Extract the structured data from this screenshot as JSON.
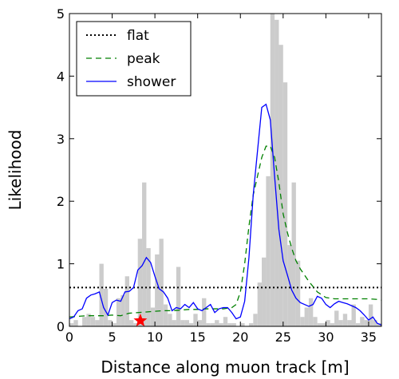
{
  "chart_data": {
    "type": "line",
    "xlabel": "Distance along muon track  [m]",
    "ylabel": "Likelihood",
    "xlim": [
      0,
      36.5
    ],
    "ylim": [
      0,
      5
    ],
    "xticks": [
      "0",
      "5",
      "10",
      "15",
      "20",
      "25",
      "30",
      "35"
    ],
    "yticks": [
      "0",
      "1",
      "2",
      "3",
      "4",
      "5"
    ],
    "legend_position": "top-left",
    "histogram": {
      "color": "#cccccc",
      "bin_width": 0.5,
      "heights": [
        0.05,
        0.1,
        0.0,
        0.15,
        0.2,
        0.15,
        0.1,
        1.0,
        0.6,
        0.1,
        0.05,
        0.45,
        0.5,
        0.8,
        0.1,
        0.05,
        1.4,
        2.3,
        1.25,
        0.3,
        1.15,
        1.4,
        0.35,
        0.2,
        0.1,
        0.95,
        0.1,
        0.1,
        0.05,
        0.2,
        0.1,
        0.45,
        0.05,
        0.05,
        0.1,
        0.05,
        0.15,
        0.05,
        0.05,
        0.0,
        0.05,
        0.0,
        0.05,
        0.2,
        0.7,
        1.1,
        2.4,
        5.0,
        4.9,
        4.5,
        3.9,
        1.3,
        2.3,
        1.05,
        0.15,
        0.3,
        0.45,
        0.15,
        0.05,
        0.05,
        0.1,
        0.05,
        0.25,
        0.1,
        0.2,
        0.1,
        0.35,
        0.05,
        0.15,
        0.1,
        0.35,
        0.1,
        0.05,
        0.2,
        0.1,
        0.05,
        0.1,
        0.0,
        0.0,
        0.05,
        0.05,
        0.0,
        0.05,
        0.0,
        0.0
      ]
    },
    "series": [
      {
        "name": "flat",
        "style": "dotted",
        "color": "#000000",
        "x": [
          0,
          36.5
        ],
        "y": [
          0.62,
          0.62
        ]
      },
      {
        "name": "peak",
        "style": "dashed",
        "color": "#008000",
        "x": [
          0,
          1,
          2,
          3,
          4,
          5,
          6,
          7,
          8,
          9,
          10,
          11,
          12,
          13,
          14,
          15,
          16,
          17,
          18,
          19,
          19.5,
          20,
          20.5,
          21,
          21.5,
          22,
          22.5,
          23,
          23.5,
          24,
          24.5,
          25,
          25.5,
          26,
          26.5,
          27,
          27.5,
          28,
          29,
          30,
          31,
          32,
          33,
          34,
          35,
          36,
          36.5
        ],
        "y": [
          0.15,
          0.16,
          0.17,
          0.17,
          0.17,
          0.18,
          0.17,
          0.21,
          0.22,
          0.23,
          0.24,
          0.25,
          0.25,
          0.26,
          0.27,
          0.27,
          0.28,
          0.28,
          0.28,
          0.3,
          0.35,
          0.55,
          1.0,
          1.6,
          2.1,
          2.4,
          2.7,
          2.88,
          2.88,
          2.7,
          2.3,
          1.8,
          1.5,
          1.25,
          1.05,
          0.92,
          0.82,
          0.72,
          0.55,
          0.46,
          0.44,
          0.44,
          0.44,
          0.44,
          0.44,
          0.43,
          0.42
        ]
      },
      {
        "name": "shower",
        "style": "solid",
        "color": "#0000ff",
        "x": [
          0,
          0.5,
          1,
          1.5,
          2,
          2.5,
          3,
          3.5,
          4,
          4.5,
          5,
          5.5,
          6,
          6.5,
          7,
          7.5,
          8,
          8.5,
          9,
          9.5,
          10,
          10.5,
          11,
          11.5,
          12,
          12.5,
          13,
          13.5,
          14,
          14.5,
          15,
          15.5,
          16,
          16.5,
          17,
          17.5,
          18,
          18.5,
          19,
          19.5,
          20,
          20.5,
          21,
          21.5,
          22,
          22.5,
          23,
          23.5,
          24,
          24.5,
          25,
          25.5,
          26,
          26.5,
          27,
          27.5,
          28,
          28.5,
          29,
          29.5,
          30,
          30.5,
          31,
          31.5,
          32,
          32.5,
          33,
          33.5,
          34,
          34.5,
          35,
          35.5,
          36,
          36.5
        ],
        "y": [
          0.12,
          0.15,
          0.25,
          0.28,
          0.45,
          0.5,
          0.52,
          0.55,
          0.3,
          0.18,
          0.38,
          0.42,
          0.4,
          0.55,
          0.56,
          0.62,
          0.9,
          0.97,
          1.1,
          1.02,
          0.8,
          0.6,
          0.55,
          0.45,
          0.25,
          0.3,
          0.28,
          0.35,
          0.3,
          0.38,
          0.28,
          0.25,
          0.3,
          0.35,
          0.22,
          0.28,
          0.3,
          0.3,
          0.22,
          0.12,
          0.15,
          0.4,
          1.1,
          2.1,
          2.8,
          3.5,
          3.55,
          3.3,
          2.4,
          1.55,
          1.05,
          0.82,
          0.58,
          0.45,
          0.38,
          0.35,
          0.32,
          0.35,
          0.48,
          0.45,
          0.35,
          0.3,
          0.36,
          0.4,
          0.38,
          0.36,
          0.33,
          0.3,
          0.25,
          0.18,
          0.1,
          0.15,
          0.05,
          0.02
        ]
      }
    ],
    "marker": {
      "shape": "star",
      "color": "#ff0000",
      "x": 8.3,
      "y": 0.09
    }
  }
}
